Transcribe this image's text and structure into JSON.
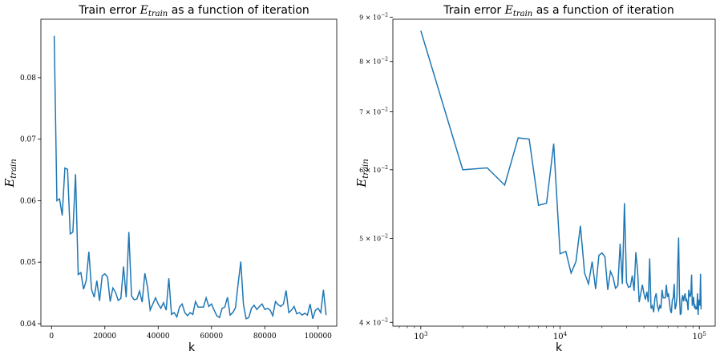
{
  "chart_data": [
    {
      "type": "line",
      "title": "Train error E_train as a function of iteration",
      "xlabel": "k",
      "ylabel": "E_train",
      "xscale": "linear",
      "yscale": "linear",
      "xlim": [
        -4000,
        107000
      ],
      "ylim": [
        0.0396,
        0.0895
      ],
      "xticks": [
        0,
        20000,
        40000,
        60000,
        80000,
        100000
      ],
      "xtick_labels": [
        "0",
        "20000",
        "40000",
        "60000",
        "80000",
        "100000"
      ],
      "yticks": [
        0.04,
        0.05,
        0.06,
        0.07,
        0.08
      ],
      "ytick_labels": [
        "0.04",
        "0.05",
        "0.06",
        "0.07",
        "0.08"
      ],
      "grid": false,
      "legend": "none",
      "color": "#1f77b4",
      "series": [
        {
          "x": [
            1000,
            2000,
            3000,
            4000,
            5000,
            6000,
            7000,
            8000,
            9000,
            10000,
            11000,
            12000,
            13000,
            14000,
            15000,
            16000,
            17000,
            18000,
            19000,
            20000,
            21000,
            22000,
            23000,
            24000,
            25000,
            26000,
            27000,
            28000,
            29000,
            30000,
            31000,
            32000,
            33000,
            34000,
            35000,
            36000,
            37000,
            38000,
            39000,
            40000,
            41000,
            42000,
            43000,
            44000,
            45000,
            46000,
            47000,
            48000,
            49000,
            50000,
            51000,
            52000,
            53000,
            54000,
            55000,
            56000,
            57000,
            58000,
            59000,
            60000,
            61000,
            62000,
            63000,
            64000,
            65000,
            66000,
            67000,
            68000,
            69000,
            70000,
            71000,
            72000,
            73000,
            74000,
            75000,
            76000,
            77000,
            78000,
            79000,
            80000,
            81000,
            82000,
            83000,
            84000,
            85000,
            86000,
            87000,
            88000,
            89000,
            90000,
            91000,
            92000,
            93000,
            94000,
            95000,
            96000,
            97000,
            98000,
            99000,
            100000,
            101000,
            102000,
            103000
          ],
          "y": [
            0.0868,
            0.06,
            0.0603,
            0.0576,
            0.0653,
            0.0651,
            0.0546,
            0.0549,
            0.0643,
            0.048,
            0.0483,
            0.0456,
            0.047,
            0.0517,
            0.0456,
            0.0443,
            0.047,
            0.0437,
            0.0478,
            0.0481,
            0.0476,
            0.0436,
            0.0458,
            0.0451,
            0.0438,
            0.0441,
            0.0493,
            0.0443,
            0.0549,
            0.0445,
            0.0439,
            0.044,
            0.0453,
            0.0435,
            0.0482,
            0.046,
            0.0422,
            0.0432,
            0.0442,
            0.0432,
            0.0425,
            0.0434,
            0.0422,
            0.0474,
            0.0415,
            0.0418,
            0.0411,
            0.0427,
            0.0432,
            0.0418,
            0.0413,
            0.0418,
            0.0415,
            0.0436,
            0.0427,
            0.0427,
            0.0427,
            0.0442,
            0.0428,
            0.0432,
            0.0422,
            0.0413,
            0.041,
            0.0425,
            0.0427,
            0.0443,
            0.0414,
            0.0418,
            0.0426,
            0.0465,
            0.0501,
            0.0431,
            0.0408,
            0.041,
            0.0425,
            0.043,
            0.0423,
            0.0428,
            0.0432,
            0.0423,
            0.0425,
            0.0422,
            0.0413,
            0.0436,
            0.0431,
            0.0428,
            0.0432,
            0.0454,
            0.0418,
            0.0422,
            0.0428,
            0.0416,
            0.0418,
            0.0414,
            0.0417,
            0.0414,
            0.0432,
            0.0408,
            0.0422,
            0.0425,
            0.0418,
            0.0455,
            0.0414
          ]
        }
      ]
    },
    {
      "type": "line",
      "title": "Train error E_train as a function of iteration",
      "xlabel": "k",
      "ylabel": "E_train",
      "xscale": "log",
      "yscale": "log",
      "xlim": [
        630,
        130000
      ],
      "ylim": [
        0.0396,
        0.0895
      ],
      "xticks": [
        1000,
        10000,
        100000
      ],
      "xtick_labels": [
        "10^3",
        "10^4",
        "10^5"
      ],
      "yticks": [
        0.04,
        0.05,
        0.06,
        0.07,
        0.08,
        0.09
      ],
      "ytick_labels": [
        "4 × 10^-2",
        "5 × 10^-2",
        "6 × 10^-2",
        "7 × 10^-2",
        "8 × 10^-2",
        "9 × 10^-2"
      ],
      "grid": false,
      "legend": "none",
      "color": "#1f77b4",
      "series": [
        {
          "x": "same as chart_data[0].series[0].x",
          "y": "same as chart_data[0].series[0].y"
        }
      ]
    }
  ],
  "text": {
    "title_prefix": "Train error ",
    "title_math_main": "E",
    "title_math_sub": "train",
    "title_suffix": " as a function of iteration",
    "ylabel_main": "E",
    "ylabel_sub": "train",
    "xlabel": "k"
  }
}
